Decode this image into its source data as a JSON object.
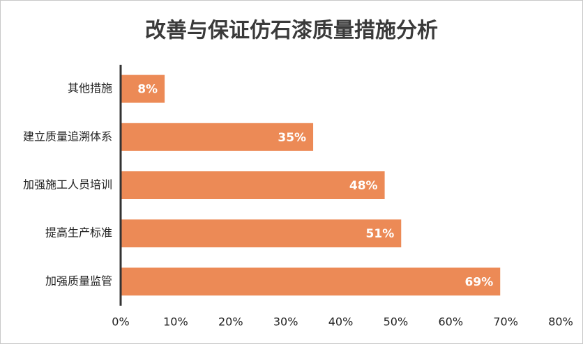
{
  "chart_data": {
    "type": "bar",
    "orientation": "horizontal",
    "title": "改善与保证仿石漆质量措施分析",
    "categories": [
      "其他措施",
      "建立质量追溯体系",
      "加强施工人员培训",
      "提高生产标准",
      "加强质量监管"
    ],
    "values": [
      8,
      35,
      48,
      51,
      69
    ],
    "value_labels": [
      "8%",
      "35%",
      "48%",
      "51%",
      "69%"
    ],
    "color": "#ec8a56",
    "xlim": [
      0,
      80
    ],
    "xticks": [
      {
        "value": 0,
        "label": "0%"
      },
      {
        "value": 10,
        "label": "10%"
      },
      {
        "value": 20,
        "label": "20%"
      },
      {
        "value": 30,
        "label": "30%"
      },
      {
        "value": 40,
        "label": "40%"
      },
      {
        "value": 50,
        "label": "50%"
      },
      {
        "value": 60,
        "label": "60%"
      },
      {
        "value": 70,
        "label": "70%"
      },
      {
        "value": 80,
        "label": "80%"
      }
    ],
    "grid": false
  }
}
